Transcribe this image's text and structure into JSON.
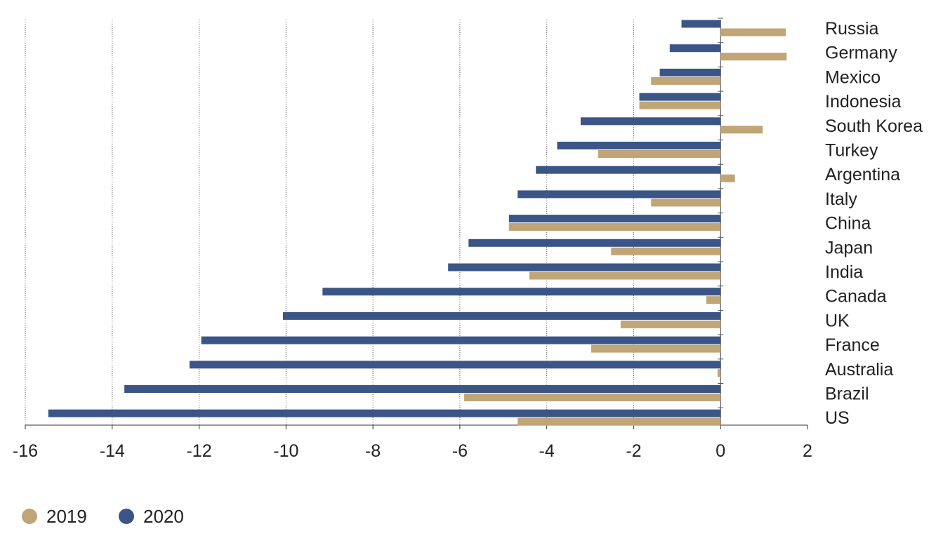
{
  "chart_data": {
    "type": "bar",
    "orientation": "horizontal",
    "title": "",
    "xlabel": "",
    "ylabel": "",
    "xlim": [
      -16,
      2
    ],
    "x_ticks": [
      "-16",
      "-14",
      "-12",
      "-10",
      "-8",
      "-6",
      "-4",
      "-2",
      "0",
      "2"
    ],
    "grid": "vertical dotted",
    "legend_position": "bottom-left",
    "categories": [
      "Russia",
      "Germany",
      "Mexico",
      "Indonesia",
      "South Korea",
      "Turkey",
      "Argentina",
      "Italy",
      "China",
      "Japan",
      "India",
      "Canada",
      "UK",
      "France",
      "Australia",
      "Brazil",
      "US"
    ],
    "series": [
      {
        "name": "2020",
        "color": "#3b5586",
        "values": [
          -0.9,
          -1.17,
          -1.4,
          -1.87,
          -3.22,
          -3.76,
          -4.25,
          -4.67,
          -4.87,
          -5.8,
          -6.27,
          -9.16,
          -10.07,
          -11.95,
          -12.22,
          -13.72,
          -15.47
        ]
      },
      {
        "name": "2019",
        "color": "#c0a576",
        "values": [
          1.5,
          1.52,
          -1.6,
          -1.87,
          0.97,
          -2.82,
          0.33,
          -1.6,
          -4.87,
          -2.52,
          -4.4,
          -0.33,
          -2.3,
          -2.98,
          -0.07,
          -5.9,
          -4.67
        ]
      }
    ]
  },
  "legend": [
    {
      "label": "2019",
      "color": "#c0a576"
    },
    {
      "label": "2020",
      "color": "#3b5586"
    }
  ]
}
